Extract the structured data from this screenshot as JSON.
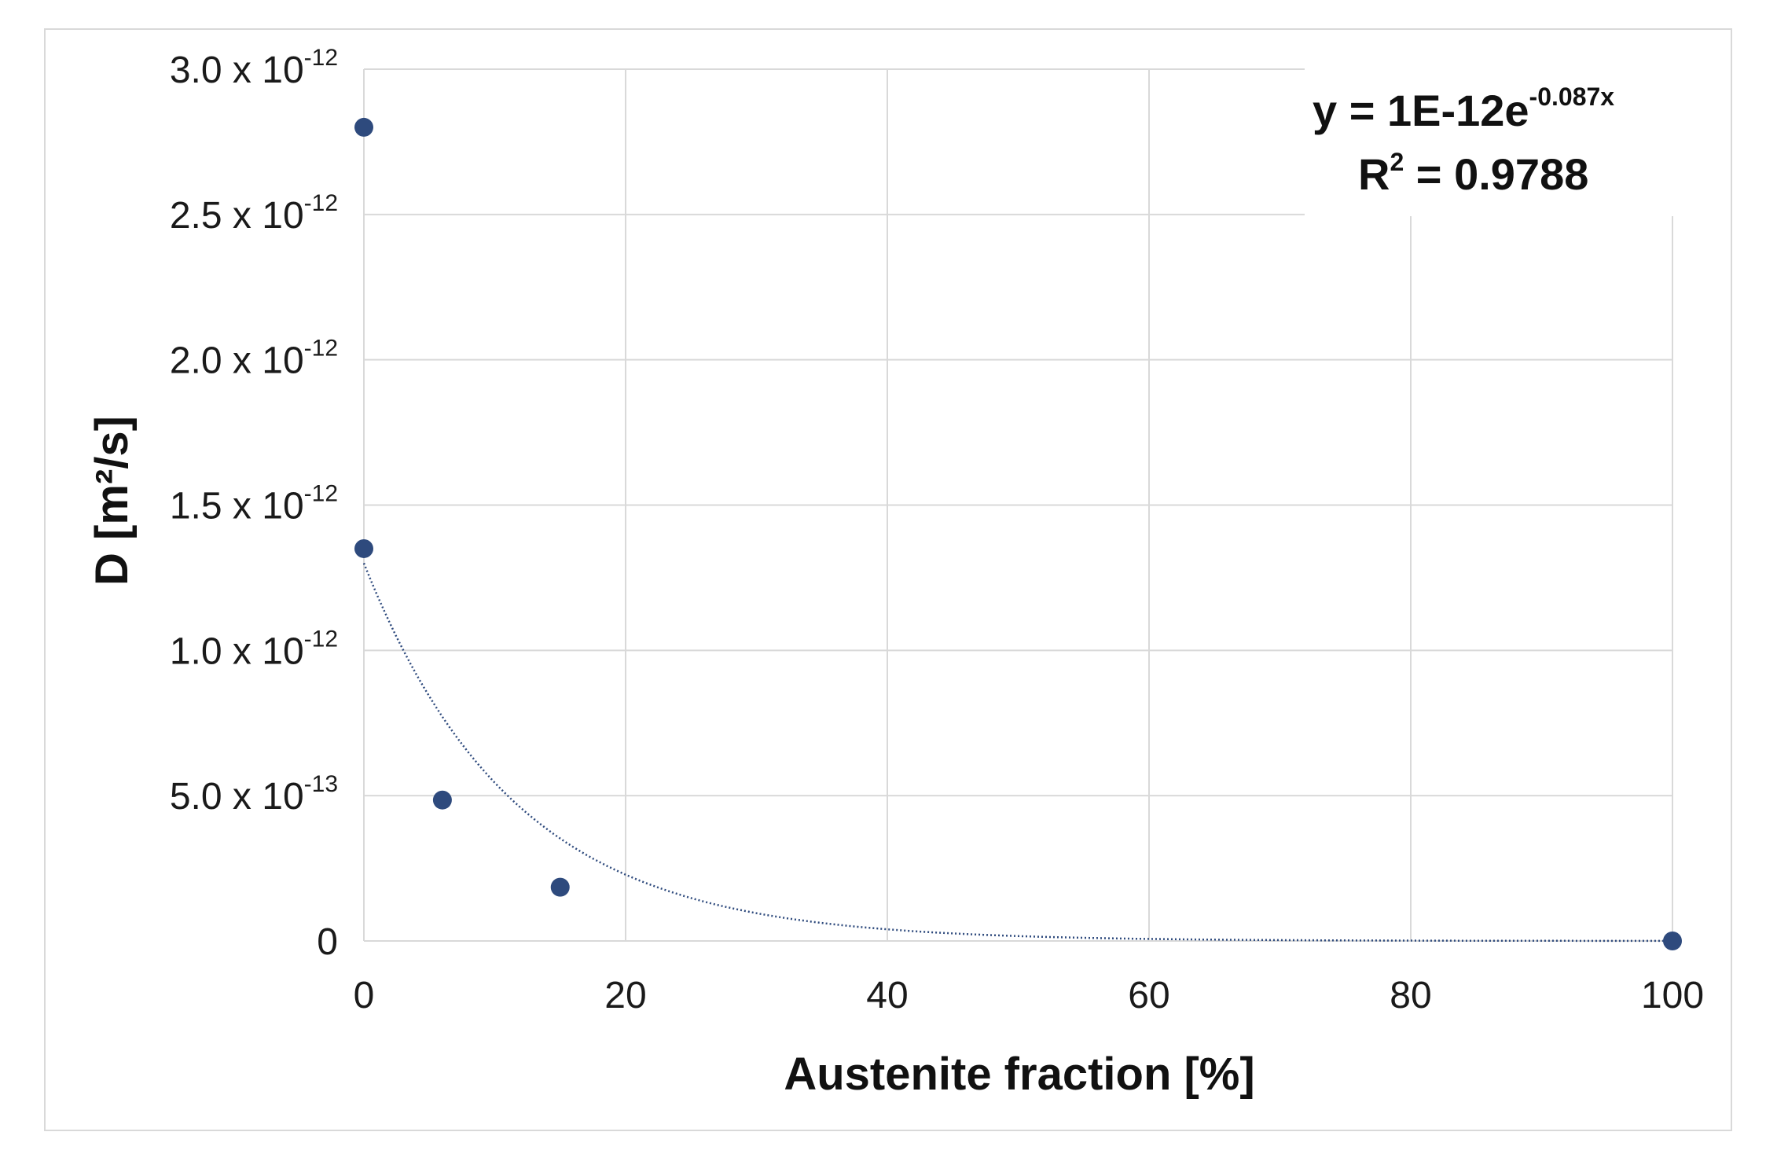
{
  "chart_data": {
    "type": "scatter",
    "xlabel": "Austenite fraction [%]",
    "ylabel": "D [m²/s]",
    "xlim": [
      0,
      100
    ],
    "ylim": [
      0,
      3e-12
    ],
    "x_ticks": [
      "0",
      "20",
      "40",
      "60",
      "80",
      "100"
    ],
    "y_ticks": [
      {
        "value": 0,
        "mantissa": "0",
        "exponent": ""
      },
      {
        "value": 5e-13,
        "mantissa": "5.0 x 10",
        "exponent": "-13"
      },
      {
        "value": 1e-12,
        "mantissa": "1.0 x 10",
        "exponent": "-12"
      },
      {
        "value": 1.5e-12,
        "mantissa": "1.5 x 10",
        "exponent": "-12"
      },
      {
        "value": 2e-12,
        "mantissa": "2.0 x 10",
        "exponent": "-12"
      },
      {
        "value": 2.5e-12,
        "mantissa": "2.5 x 10",
        "exponent": "-12"
      },
      {
        "value": 3e-12,
        "mantissa": "3.0 x 10",
        "exponent": "-12"
      }
    ],
    "grid": true,
    "series": [
      {
        "x": [
          0,
          0,
          6,
          15,
          100
        ],
        "y": [
          2.8e-12,
          1.35e-12,
          4.85e-13,
          1.85e-13,
          0.0
        ],
        "color": "#2e4a7d"
      }
    ],
    "trendline": {
      "type": "exponential",
      "color": "#2e4a7d",
      "style": "dotted",
      "intercept": 1.3e-12,
      "rate": -0.087
    },
    "annotation": {
      "equation_base": "y = 1E-12e",
      "equation_exponent": "-0.087x",
      "r2_label": "R",
      "r2_sup": "2",
      "r2_value": " = 0.9788"
    }
  }
}
